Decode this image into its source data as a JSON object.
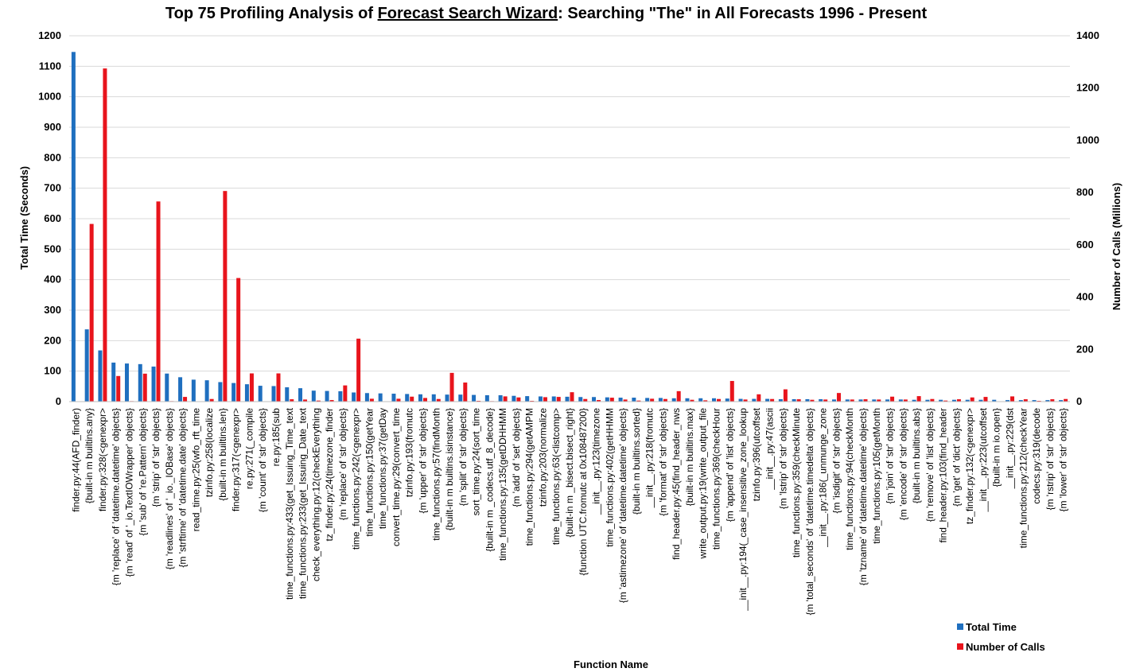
{
  "chart_data": {
    "type": "bar",
    "title_parts": [
      "Top 75 Profiling Analysis of ",
      "Forecast Search Wizard",
      ": Searching \"The\" in All Forecasts 1996 - Present"
    ],
    "xlabel": "Function Name",
    "ylabel": "Total Time (Seconds)",
    "y2label": "Number of Calls (Millions)",
    "ylim": [
      0,
      1200
    ],
    "y2lim": [
      0,
      1400
    ],
    "yticks": [
      0,
      100,
      200,
      300,
      400,
      500,
      600,
      700,
      800,
      900,
      1000,
      1100,
      1200
    ],
    "y2ticks": [
      0,
      200,
      400,
      600,
      800,
      1000,
      1200,
      1400
    ],
    "grid": true,
    "legend_position": "bottom-right",
    "colors": {
      "total_time": "#1f6fbf",
      "calls": "#e8141c"
    },
    "categories": [
      "finder.py:44(AFD_finder)",
      "{built-in m builtins.any}",
      "finder.py:328(<genexpr>",
      "{m 'replace' of 'datetime.datetime' objects}",
      "{m 'read' of '_io.TextIOWrapper' objects}",
      "{m 'sub' of 're.Pattern' objects}",
      "{m 'strip' of 'str' objects}",
      "{m 'readlines' of '_io._IOBase' objects}",
      "{m 'strftime' of 'datetime.date' objects}",
      "read_time.py:25(wfo_rft_time",
      "tzinfo.py:258(localize",
      "{built-in m builtins.len}",
      "finder.py:317(<genexpr>",
      "re.py:271(_compile",
      "{m 'count' of 'str' objects}",
      "re.py:185(sub",
      "time_functions.py:433(get_Issuing_Time_text",
      "time_functions.py:233(get_Issuing_Date_text",
      "check_everything.py:12(checkEverything",
      "tz_finder.py:24(timezone_finder",
      "{m 'replace' of 'str' objects}",
      "time_functions.py:242(<genexpr>",
      "time_functions.py:150(getYear",
      "time_functions.py:37(getDay",
      "convert_time.py:29(convert_time",
      "tzinfo.py:193(fromutc",
      "{m 'upper' of 'str' objects}",
      "time_functions.py:57(findMonth",
      "{built-in m builtins.isinstance}",
      "{m 'split' of 'str' objects}",
      "sort_time.py:24(sort_time",
      "{built-in m _codecs.utf_8_decode}",
      "time_functions.py:135(getDDHHMM",
      "{m 'add' of 'set' objects}",
      "time_functions.py:294(getAMPM",
      "tzinfo.py:203(normalize",
      "time_functions.py:63(<listcomp>",
      "{built-in m _bisect.bisect_right}",
      "{function UTC.fromutc at 0x108487200}",
      "__init__.py:123(timezone",
      "time_functions.py:402(getHHMM",
      "{m 'astimezone' of 'datetime.datetime' objects}",
      "{built-in m builtins.sorted}",
      "__init__.py:218(fromutc",
      "{m 'format' of 'str' objects}",
      "find_header.py:45(find_header_nws",
      "{built-in m builtins.max}",
      "write_output.py:19(write_output_file",
      "time_functions.py:369(checkHour",
      "{m 'append' of 'list' objects}",
      "__init__.py:194(_case_insensitive_zone_lookup",
      "tzinfo.py:396(utcoffset",
      "__init__.py:47(ascii",
      "{m 'lstrip' of 'str' objects}",
      "time_functions.py:359(checkMinute",
      "{m 'total_seconds' of 'datetime.timedelta' objects}",
      "__init__.py:186(_unmunge_zone",
      "{m 'isdigit' of 'str' objects}",
      "time_functions.py:94(checkMonth",
      "{m 'tzname' of 'datetime.datetime' objects}",
      "time_functions.py:105(getMonth",
      "{m 'join' of 'str' objects}",
      "{m 'encode' of 'str' objects}",
      "{built-in m builtins.abs}",
      "{m 'remove' of 'list' objects}",
      "find_header.py:103(find_header",
      "{m 'get' of 'dict' objects}",
      "tz_finder.py:132(<genexpr>",
      "__init__.py:223(utcoffset",
      "{built-in m io.open}",
      "__init__.py:229(dst",
      "time_functions.py:212(checkYear",
      "codecs.py:319(decode",
      "{m 'rstrip' of 'str' objects}",
      "{m 'lower' of 'str' objects}"
    ],
    "series": [
      {
        "name": "Total Time",
        "axis": "left",
        "values": [
          1147,
          237,
          168,
          128,
          125,
          123,
          115,
          92,
          80,
          72,
          70,
          64,
          61,
          57,
          52,
          51,
          47,
          44,
          36,
          35,
          34,
          30,
          28,
          27,
          26,
          25,
          24,
          24,
          23,
          23,
          22,
          21,
          21,
          19,
          18,
          17,
          17,
          16,
          15,
          15,
          14,
          13,
          13,
          12,
          12,
          11,
          11,
          11,
          11,
          10,
          9,
          9,
          9,
          8,
          8,
          8,
          8,
          7,
          7,
          7,
          7,
          7,
          7,
          6,
          6,
          6,
          6,
          6,
          6,
          6,
          5,
          5,
          5,
          5,
          5
        ]
      },
      {
        "name": "Number of Calls",
        "axis": "right",
        "values": [
          0,
          680,
          1275,
          98,
          2,
          107,
          766,
          2,
          18,
          1,
          10,
          806,
          473,
          108,
          1,
          108,
          9,
          8,
          4,
          6,
          62,
          241,
          11,
          1,
          11,
          19,
          14,
          10,
          110,
          73,
          3,
          2,
          20,
          16,
          3,
          17,
          18,
          36,
          10,
          6,
          15,
          8,
          4,
          11,
          10,
          40,
          7,
          5,
          10,
          79,
          8,
          28,
          10,
          47,
          9,
          7,
          8,
          33,
          8,
          9,
          8,
          19,
          8,
          21,
          10,
          4,
          9,
          16,
          18,
          1,
          20,
          9,
          3,
          9,
          10
        ]
      }
    ]
  }
}
